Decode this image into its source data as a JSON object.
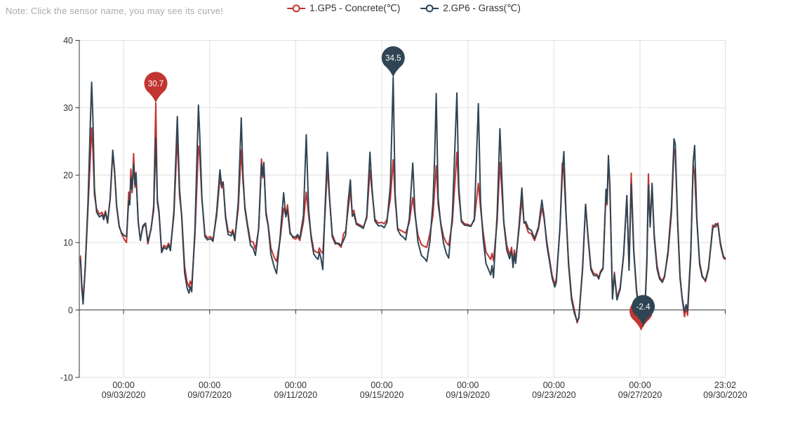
{
  "note": "Note: Click the sensor name, you may see its curve!",
  "colors": {
    "concrete": "#c23531",
    "grass": "#2f4554",
    "axis": "#333333",
    "grid": "#e0e0e0",
    "label": "#333333",
    "note": "#aaaaaa",
    "pin_text": "#ffffff",
    "background": "#ffffff"
  },
  "legend": {
    "items": [
      {
        "id": "concrete",
        "label": "1.GP5 - Concrete(℃)"
      },
      {
        "id": "grass",
        "label": "2.GP6 - Grass(℃)"
      }
    ]
  },
  "chart_data": {
    "type": "line",
    "title": "",
    "xlabel": "",
    "ylabel": "",
    "y_unit": "℃",
    "x_unit_note": "t = days since 09/01/2020 00:00",
    "grid": true,
    "legend_position": "top-center",
    "y_axis": {
      "min": -10,
      "max": 40,
      "ticks": [
        40,
        30,
        20,
        10,
        0,
        -10
      ]
    },
    "x_ticks": [
      {
        "t": 2.0,
        "time": "00:00",
        "date": "09/03/2020"
      },
      {
        "t": 6.0,
        "time": "00:00",
        "date": "09/07/2020"
      },
      {
        "t": 10.0,
        "time": "00:00",
        "date": "09/11/2020"
      },
      {
        "t": 14.0,
        "time": "00:00",
        "date": "09/15/2020"
      },
      {
        "t": 18.0,
        "time": "00:00",
        "date": "09/19/2020"
      },
      {
        "t": 22.0,
        "time": "00:00",
        "date": "09/23/2020"
      },
      {
        "t": 26.0,
        "time": "00:00",
        "date": "09/27/2020"
      },
      {
        "t": 29.96,
        "time": "23:02",
        "date": "09/30/2020"
      }
    ],
    "series": [
      {
        "name": "1.GP5 - Concrete(℃)",
        "color_key": "concrete",
        "sample_index": 1
      },
      {
        "name": "2.GP6 - Grass(℃)",
        "color_key": "grass",
        "sample_index": 2
      }
    ],
    "samples": [
      [
        0.0,
        8.0,
        7.5
      ],
      [
        0.06,
        4.0,
        3.2
      ],
      [
        0.12,
        1.5,
        0.9
      ],
      [
        0.22,
        6.0,
        6.2
      ],
      [
        0.35,
        15.0,
        16.0
      ],
      [
        0.45,
        22.0,
        27.0
      ],
      [
        0.52,
        27.0,
        33.8
      ],
      [
        0.58,
        23.5,
        28.0
      ],
      [
        0.65,
        17.0,
        18.0
      ],
      [
        0.75,
        15.0,
        14.5
      ],
      [
        0.88,
        14.2,
        13.8
      ],
      [
        1.0,
        14.5,
        14.1
      ],
      [
        1.08,
        13.8,
        13.4
      ],
      [
        1.16,
        14.7,
        14.5
      ],
      [
        1.26,
        13.1,
        12.9
      ],
      [
        1.38,
        16.5,
        16.6
      ],
      [
        1.5,
        23.3,
        23.7
      ],
      [
        1.58,
        20.5,
        20.8
      ],
      [
        1.68,
        15.5,
        15.3
      ],
      [
        1.8,
        12.5,
        12.3
      ],
      [
        1.92,
        11.2,
        11.4
      ],
      [
        2.05,
        10.4,
        11.0
      ],
      [
        2.14,
        10.0,
        10.9
      ],
      [
        2.24,
        17.5,
        16.2
      ],
      [
        2.29,
        15.8,
        15.6
      ],
      [
        2.34,
        20.9,
        19.6
      ],
      [
        2.4,
        17.4,
        17.9
      ],
      [
        2.47,
        23.2,
        21.6
      ],
      [
        2.53,
        18.2,
        18.6
      ],
      [
        2.58,
        20.4,
        20.2
      ],
      [
        2.68,
        13.0,
        13.3
      ],
      [
        2.78,
        10.5,
        10.3
      ],
      [
        2.9,
        12.2,
        12.5
      ],
      [
        3.02,
        12.8,
        12.9
      ],
      [
        3.13,
        9.8,
        10.1
      ],
      [
        3.28,
        12.0,
        12.1
      ],
      [
        3.4,
        15.5,
        14.8
      ],
      [
        3.5,
        30.7,
        25.5
      ],
      [
        3.57,
        16.0,
        16.5
      ],
      [
        3.65,
        14.3,
        14.6
      ],
      [
        3.77,
        8.8,
        8.5
      ],
      [
        3.88,
        9.6,
        9.3
      ],
      [
        4.0,
        9.3,
        9.0
      ],
      [
        4.09,
        9.9,
        9.6
      ],
      [
        4.18,
        9.2,
        8.8
      ],
      [
        4.34,
        14.0,
        14.6
      ],
      [
        4.5,
        25.8,
        28.7
      ],
      [
        4.6,
        17.0,
        18.0
      ],
      [
        4.7,
        14.2,
        14.0
      ],
      [
        4.84,
        6.5,
        5.5
      ],
      [
        4.95,
        4.2,
        3.3
      ],
      [
        5.04,
        3.4,
        2.5
      ],
      [
        5.1,
        4.3,
        3.5
      ],
      [
        5.17,
        3.6,
        2.7
      ],
      [
        5.32,
        11.0,
        12.0
      ],
      [
        5.48,
        24.3,
        30.4
      ],
      [
        5.54,
        23.0,
        26.0
      ],
      [
        5.64,
        16.4,
        16.7
      ],
      [
        5.78,
        11.2,
        10.9
      ],
      [
        5.9,
        10.7,
        10.4
      ],
      [
        6.03,
        10.9,
        10.6
      ],
      [
        6.16,
        10.5,
        10.2
      ],
      [
        6.33,
        14.0,
        14.6
      ],
      [
        6.48,
        19.6,
        20.8
      ],
      [
        6.56,
        18.1,
        18.5
      ],
      [
        6.63,
        18.7,
        19.0
      ],
      [
        6.74,
        14.0,
        13.7
      ],
      [
        6.86,
        11.7,
        11.2
      ],
      [
        7.0,
        11.4,
        11.0
      ],
      [
        7.08,
        11.9,
        11.6
      ],
      [
        7.17,
        10.6,
        10.3
      ],
      [
        7.33,
        15.0,
        16.0
      ],
      [
        7.47,
        23.7,
        28.5
      ],
      [
        7.55,
        19.2,
        20.2
      ],
      [
        7.64,
        15.4,
        15.0
      ],
      [
        7.76,
        12.7,
        12.4
      ],
      [
        7.9,
        10.2,
        9.6
      ],
      [
        8.02,
        10.1,
        9.2
      ],
      [
        8.13,
        9.0,
        8.1
      ],
      [
        8.28,
        12.0,
        12.1
      ],
      [
        8.41,
        22.4,
        21.6
      ],
      [
        8.47,
        19.6,
        19.9
      ],
      [
        8.52,
        21.5,
        21.9
      ],
      [
        8.62,
        14.6,
        14.2
      ],
      [
        8.72,
        12.7,
        12.5
      ],
      [
        8.85,
        9.2,
        8.2
      ],
      [
        9.0,
        7.8,
        6.4
      ],
      [
        9.11,
        7.2,
        5.4
      ],
      [
        9.28,
        10.5,
        11.0
      ],
      [
        9.44,
        15.1,
        17.4
      ],
      [
        9.54,
        14.0,
        13.8
      ],
      [
        9.62,
        15.6,
        14.9
      ],
      [
        9.74,
        11.6,
        11.3
      ],
      [
        9.87,
        10.7,
        10.9
      ],
      [
        10.0,
        10.5,
        10.8
      ],
      [
        10.09,
        10.9,
        11.2
      ],
      [
        10.19,
        10.3,
        10.6
      ],
      [
        10.36,
        13.0,
        14.0
      ],
      [
        10.49,
        17.5,
        26.0
      ],
      [
        10.6,
        14.0,
        15.0
      ],
      [
        10.72,
        11.0,
        10.6
      ],
      [
        10.84,
        8.9,
        8.3
      ],
      [
        10.95,
        8.6,
        7.8
      ],
      [
        11.04,
        8.5,
        7.5
      ],
      [
        11.1,
        9.2,
        8.6
      ],
      [
        11.17,
        8.7,
        7.7
      ],
      [
        11.26,
        8.4,
        6.0
      ],
      [
        11.36,
        14.0,
        15.0
      ],
      [
        11.47,
        21.2,
        23.4
      ],
      [
        11.57,
        16.6,
        16.8
      ],
      [
        11.7,
        11.2,
        10.9
      ],
      [
        11.84,
        10.1,
        9.8
      ],
      [
        12.0,
        9.7,
        9.9
      ],
      [
        12.11,
        9.3,
        9.6
      ],
      [
        12.22,
        11.3,
        10.3
      ],
      [
        12.32,
        11.7,
        11.1
      ],
      [
        12.44,
        15.0,
        16.2
      ],
      [
        12.54,
        17.7,
        19.3
      ],
      [
        12.63,
        14.4,
        13.9
      ],
      [
        12.7,
        14.8,
        14.3
      ],
      [
        12.82,
        12.9,
        12.7
      ],
      [
        13.0,
        12.6,
        12.4
      ],
      [
        13.14,
        12.3,
        12.1
      ],
      [
        13.3,
        13.6,
        13.9
      ],
      [
        13.45,
        20.8,
        23.4
      ],
      [
        13.55,
        17.5,
        18.0
      ],
      [
        13.68,
        13.5,
        13.2
      ],
      [
        13.84,
        12.9,
        12.5
      ],
      [
        14.0,
        13.0,
        12.5
      ],
      [
        14.11,
        12.8,
        12.2
      ],
      [
        14.24,
        13.4,
        13.0
      ],
      [
        14.4,
        16.5,
        18.5
      ],
      [
        14.53,
        22.3,
        34.5
      ],
      [
        14.62,
        16.4,
        17.1
      ],
      [
        14.74,
        12.1,
        11.9
      ],
      [
        14.88,
        11.8,
        11.1
      ],
      [
        15.0,
        11.6,
        10.8
      ],
      [
        15.11,
        11.4,
        10.4
      ],
      [
        15.28,
        13.0,
        13.6
      ],
      [
        15.44,
        16.7,
        21.8
      ],
      [
        15.54,
        14.1,
        14.6
      ],
      [
        15.68,
        11.1,
        10.1
      ],
      [
        15.84,
        9.7,
        8.1
      ],
      [
        16.0,
        9.4,
        7.6
      ],
      [
        16.09,
        9.3,
        7.2
      ],
      [
        16.24,
        11.4,
        10.2
      ],
      [
        16.38,
        14.0,
        16.0
      ],
      [
        16.46,
        18.0,
        23.0
      ],
      [
        16.53,
        21.4,
        32.1
      ],
      [
        16.62,
        15.6,
        16.6
      ],
      [
        16.74,
        12.9,
        12.7
      ],
      [
        16.87,
        10.9,
        9.9
      ],
      [
        17.0,
        10.0,
        8.4
      ],
      [
        17.11,
        9.6,
        7.7
      ],
      [
        17.28,
        13.0,
        14.0
      ],
      [
        17.49,
        23.4,
        32.2
      ],
      [
        17.58,
        17.2,
        18.2
      ],
      [
        17.7,
        13.3,
        13.1
      ],
      [
        17.84,
        12.8,
        12.6
      ],
      [
        18.0,
        12.7,
        12.5
      ],
      [
        18.14,
        12.5,
        12.4
      ],
      [
        18.3,
        13.3,
        13.5
      ],
      [
        18.49,
        18.8,
        30.6
      ],
      [
        18.59,
        15.1,
        16.1
      ],
      [
        18.71,
        11.6,
        10.6
      ],
      [
        18.84,
        8.6,
        6.9
      ],
      [
        19.0,
        7.8,
        5.7
      ],
      [
        19.06,
        7.5,
        5.2
      ],
      [
        19.12,
        8.4,
        6.6
      ],
      [
        19.19,
        7.3,
        4.8
      ],
      [
        19.36,
        13.0,
        14.2
      ],
      [
        19.49,
        21.9,
        26.9
      ],
      [
        19.55,
        19.2,
        22.2
      ],
      [
        19.67,
        13.1,
        12.9
      ],
      [
        19.81,
        9.6,
        8.9
      ],
      [
        19.94,
        8.2,
        7.6
      ],
      [
        20.03,
        9.3,
        8.7
      ],
      [
        20.1,
        6.9,
        6.3
      ],
      [
        20.16,
        8.9,
        8.4
      ],
      [
        20.22,
        7.4,
        6.9
      ],
      [
        20.38,
        12.0,
        12.6
      ],
      [
        20.51,
        16.4,
        18.1
      ],
      [
        20.61,
        13.1,
        12.9
      ],
      [
        20.69,
        12.7,
        13.1
      ],
      [
        20.81,
        11.5,
        12.1
      ],
      [
        20.95,
        11.3,
        11.8
      ],
      [
        21.1,
        10.3,
        10.6
      ],
      [
        21.28,
        12.0,
        12.3
      ],
      [
        21.44,
        15.1,
        16.3
      ],
      [
        21.54,
        13.6,
        13.9
      ],
      [
        21.67,
        10.1,
        9.6
      ],
      [
        21.8,
        7.5,
        7.1
      ],
      [
        21.92,
        5.1,
        4.7
      ],
      [
        22.04,
        3.8,
        3.4
      ],
      [
        22.11,
        4.6,
        4.1
      ],
      [
        22.28,
        12.0,
        12.4
      ],
      [
        22.39,
        21.8,
        20.2
      ],
      [
        22.46,
        20.2,
        23.5
      ],
      [
        22.56,
        14.2,
        14.6
      ],
      [
        22.68,
        7.2,
        6.7
      ],
      [
        22.82,
        2.0,
        1.5
      ],
      [
        22.95,
        0.0,
        -0.5
      ],
      [
        23.08,
        -1.9,
        -1.7
      ],
      [
        23.16,
        -1.0,
        -1.2
      ],
      [
        23.33,
        6.0,
        6.3
      ],
      [
        23.47,
        15.6,
        15.7
      ],
      [
        23.58,
        11.2,
        10.9
      ],
      [
        23.72,
        6.3,
        6.0
      ],
      [
        23.85,
        5.4,
        5.1
      ],
      [
        24.0,
        5.3,
        5.1
      ],
      [
        24.08,
        4.8,
        4.6
      ],
      [
        24.16,
        5.7,
        5.5
      ],
      [
        24.28,
        6.3,
        6.1
      ],
      [
        24.42,
        17.6,
        17.9
      ],
      [
        24.47,
        15.6,
        15.9
      ],
      [
        24.53,
        22.2,
        22.9
      ],
      [
        24.6,
        18.0,
        18.4
      ],
      [
        24.72,
        1.9,
        1.6
      ],
      [
        24.81,
        5.6,
        5.3
      ],
      [
        24.93,
        1.8,
        1.5
      ],
      [
        25.08,
        3.4,
        3.1
      ],
      [
        25.24,
        8.1,
        8.3
      ],
      [
        25.39,
        16.8,
        17.0
      ],
      [
        25.49,
        6.2,
        5.9
      ],
      [
        25.59,
        20.3,
        18.7
      ],
      [
        25.71,
        9.0,
        8.6
      ],
      [
        25.84,
        3.0,
        2.7
      ],
      [
        25.95,
        0.4,
        0.1
      ],
      [
        26.08,
        -1.5,
        -1.8
      ],
      [
        26.15,
        -2.3,
        -2.4
      ],
      [
        26.24,
        1.0,
        0.8
      ],
      [
        26.32,
        8.0,
        7.2
      ],
      [
        26.39,
        20.2,
        18.5
      ],
      [
        26.47,
        12.6,
        12.3
      ],
      [
        26.56,
        18.2,
        18.8
      ],
      [
        26.66,
        11.2,
        10.7
      ],
      [
        26.79,
        6.6,
        6.1
      ],
      [
        26.91,
        4.9,
        4.6
      ],
      [
        27.04,
        4.3,
        4.1
      ],
      [
        27.14,
        5.1,
        4.9
      ],
      [
        27.3,
        8.2,
        8.7
      ],
      [
        27.46,
        14.2,
        15.2
      ],
      [
        27.58,
        23.9,
        25.4
      ],
      [
        27.64,
        23.0,
        24.6
      ],
      [
        27.75,
        13.2,
        12.7
      ],
      [
        27.86,
        5.1,
        4.7
      ],
      [
        27.96,
        1.6,
        1.8
      ],
      [
        28.07,
        -1.0,
        -0.3
      ],
      [
        28.14,
        0.4,
        0.8
      ],
      [
        28.21,
        -0.8,
        -0.1
      ],
      [
        28.36,
        8.0,
        8.6
      ],
      [
        28.47,
        21.6,
        22.0
      ],
      [
        28.54,
        20.0,
        24.4
      ],
      [
        28.64,
        13.2,
        13.7
      ],
      [
        28.77,
        7.1,
        6.7
      ],
      [
        28.89,
        5.1,
        4.9
      ],
      [
        29.04,
        4.2,
        4.4
      ],
      [
        29.18,
        6.0,
        6.2
      ],
      [
        29.38,
        12.6,
        12.1
      ],
      [
        29.52,
        12.3,
        12.8
      ],
      [
        29.62,
        12.9,
        12.6
      ],
      [
        29.74,
        9.6,
        9.9
      ],
      [
        29.88,
        7.7,
        7.9
      ],
      [
        29.96,
        7.5,
        7.7
      ]
    ],
    "markers": [
      {
        "id": "max-pin-concrete",
        "series": "concrete",
        "t": 3.5,
        "value": 30.7,
        "label": "30.7"
      },
      {
        "id": "min-pin-concrete",
        "series": "concrete",
        "t": 26.05,
        "value": -3.1,
        "label": ""
      },
      {
        "id": "max-pin-grass",
        "series": "grass",
        "t": 14.53,
        "value": 34.5,
        "label": "34.5"
      },
      {
        "id": "min-pin-grass",
        "series": "grass",
        "t": 26.15,
        "value": -2.4,
        "label": "-2.4"
      }
    ]
  }
}
